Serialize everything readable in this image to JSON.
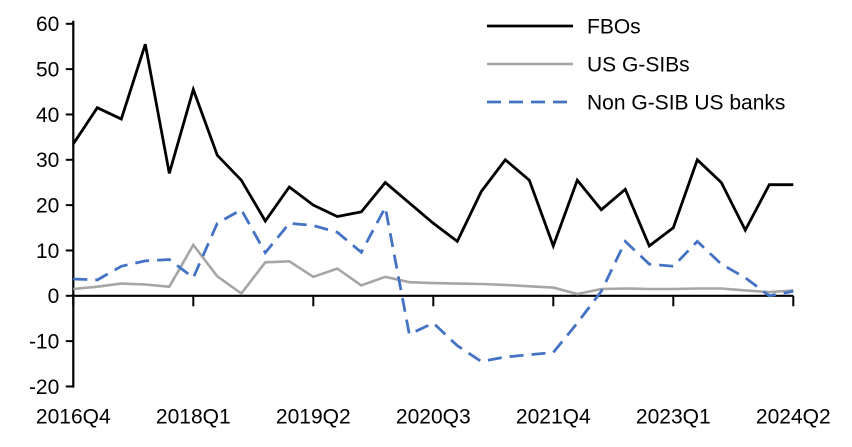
{
  "chart_data": {
    "type": "line",
    "title": "",
    "xlabel": "",
    "ylabel": "",
    "grid": "off",
    "legend_position": "top-right",
    "ylim": [
      -20,
      60
    ],
    "y_ticks": [
      60,
      50,
      40,
      30,
      20,
      10,
      0,
      -10,
      -20
    ],
    "x_tick_indices": [
      0,
      5,
      10,
      15,
      20,
      25,
      30
    ],
    "x_tick_labels": [
      "2016Q4",
      "2018Q1",
      "2019Q2",
      "2020Q3",
      "2021Q4",
      "2023Q1",
      "2024Q2"
    ],
    "categories": [
      "2016Q4",
      "2017Q1",
      "2017Q2",
      "2017Q3",
      "2017Q4",
      "2018Q1",
      "2018Q2",
      "2018Q3",
      "2018Q4",
      "2019Q1",
      "2019Q2",
      "2019Q3",
      "2019Q4",
      "2020Q1",
      "2020Q2",
      "2020Q3",
      "2020Q4",
      "2021Q1",
      "2021Q2",
      "2021Q3",
      "2021Q4",
      "2022Q1",
      "2022Q2",
      "2022Q3",
      "2022Q4",
      "2023Q1",
      "2023Q2",
      "2023Q3",
      "2023Q4",
      "2024Q1",
      "2024Q2"
    ],
    "series": [
      {
        "name": "FBOs",
        "color": "#000000",
        "style": "solid",
        "values": [
          33.5,
          41.5,
          39,
          55.5,
          27,
          45.5,
          31,
          25.5,
          16.5,
          24,
          20,
          17.5,
          18.5,
          25,
          20.5,
          16,
          12,
          23,
          30,
          25.5,
          11,
          25.5,
          19,
          23.5,
          11,
          15,
          30,
          25,
          14.5,
          24.5,
          24.5
        ]
      },
      {
        "name": "US G-SIBs",
        "color": "#a6a6a6",
        "style": "solid",
        "values": [
          1.5,
          2,
          2.7,
          2.5,
          2,
          11.2,
          4.3,
          0.5,
          7.4,
          7.6,
          4.2,
          6,
          2.3,
          4.2,
          3,
          2.8,
          2.7,
          2.6,
          2.4,
          2.1,
          1.8,
          0.4,
          1.5,
          1.6,
          1.5,
          1.5,
          1.6,
          1.6,
          1.2,
          0.8,
          1.2
        ]
      },
      {
        "name": "Non G-SIB US banks",
        "color": "#4472c4",
        "style": "dashed",
        "values": [
          3.7,
          3.5,
          6.5,
          7.7,
          8,
          4,
          16,
          19,
          9.5,
          16,
          15.5,
          14,
          9.6,
          19.5,
          -8.5,
          -6,
          -11,
          -14.5,
          -13.5,
          -13,
          -12.5,
          -6,
          1,
          12,
          7,
          6.5,
          12,
          7,
          4,
          0,
          1
        ]
      }
    ]
  }
}
